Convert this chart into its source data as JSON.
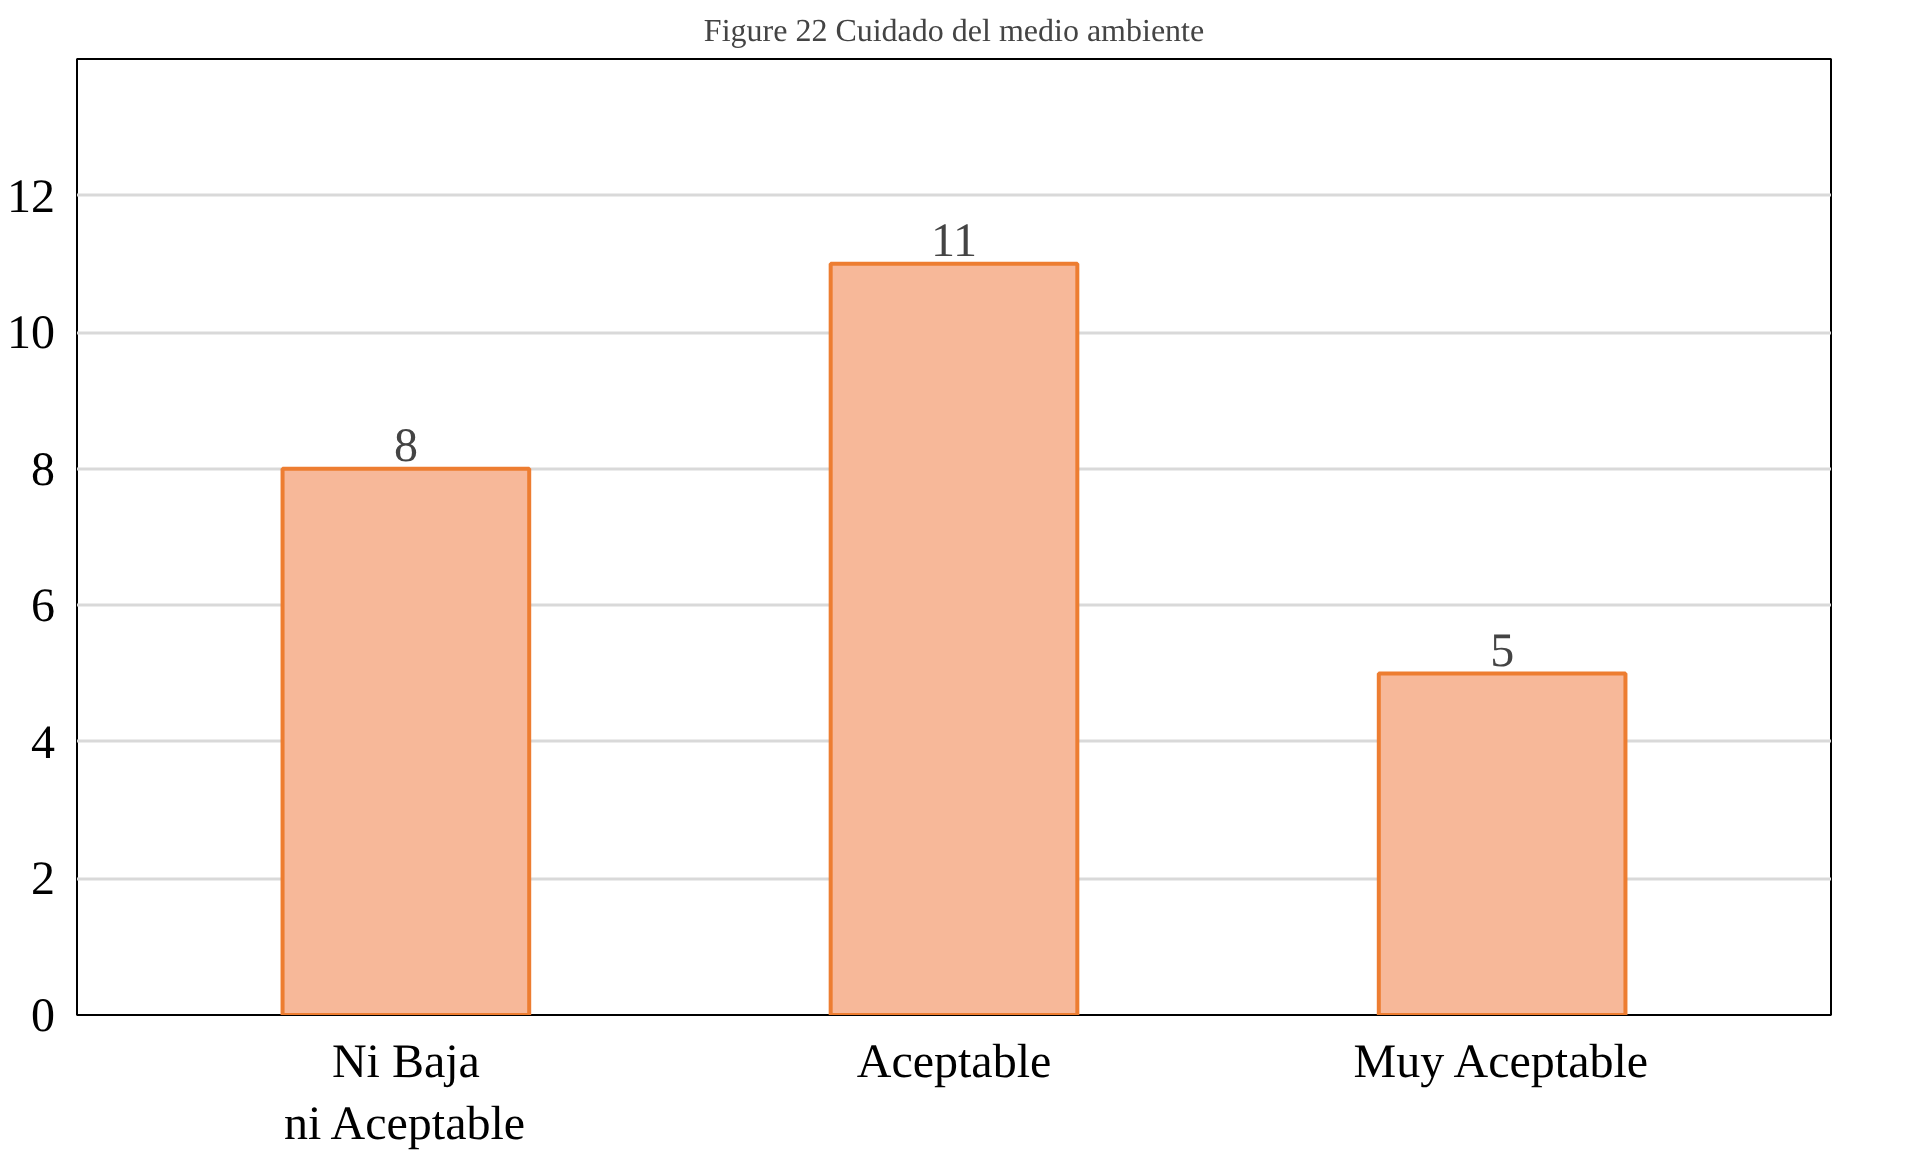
{
  "chart_data": {
    "type": "bar",
    "title": "Figure 22 Cuidado del medio ambiente",
    "categories": [
      "Ni Baja ni Aceptable",
      "Aceptable",
      "Muy Aceptable"
    ],
    "values": [
      8,
      11,
      5
    ],
    "color": "#f7b899",
    "ylim": [
      0,
      14
    ],
    "yticks": [
      0,
      2,
      4,
      6,
      8,
      10,
      12
    ],
    "grid": "y",
    "data_labels": true
  }
}
